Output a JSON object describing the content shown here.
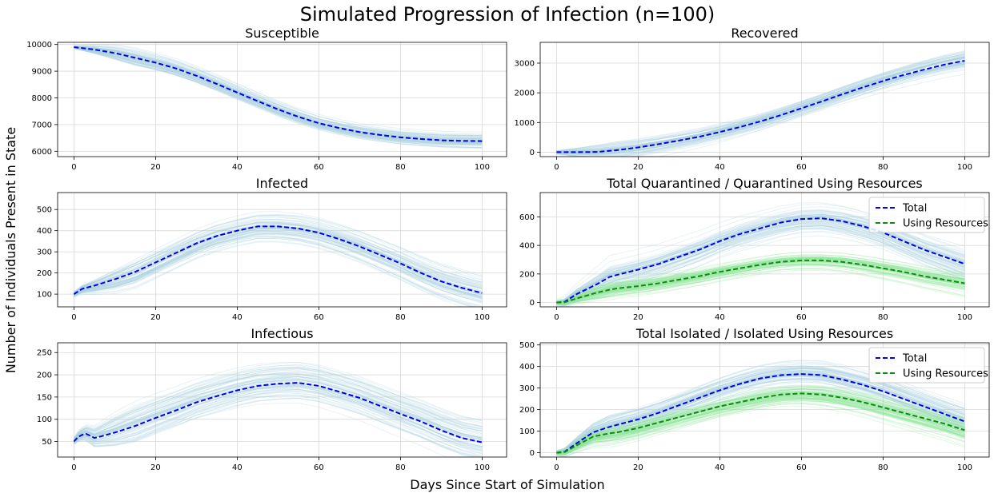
{
  "figure": {
    "suptitle": "Simulated Progression of Infection (n=100)",
    "xlabel": "Days Since Start of Simulation",
    "ylabel": "Number of Individuals Present in State"
  },
  "colors": {
    "mean": "#0000ee",
    "resources_mean": "#118811",
    "sim_blue": "#a9cfe0",
    "sim_green": "#8fe69a",
    "grid": "#d8d8d8"
  },
  "chart_data": [
    {
      "type": "line",
      "title": "Susceptible",
      "xlim": [
        -4,
        106
      ],
      "ylim": [
        5800,
        10080
      ],
      "xticks": [
        0,
        20,
        40,
        60,
        80,
        100
      ],
      "yticks": [
        6000,
        7000,
        8000,
        9000,
        10000
      ],
      "x": [
        0,
        5,
        10,
        15,
        20,
        25,
        30,
        35,
        40,
        45,
        50,
        55,
        60,
        65,
        70,
        75,
        80,
        85,
        90,
        95,
        100
      ],
      "series": [
        {
          "values": [
            9900,
            9810,
            9680,
            9500,
            9320,
            9100,
            8830,
            8520,
            8200,
            7880,
            7570,
            7290,
            7050,
            6870,
            6720,
            6610,
            6520,
            6460,
            6410,
            6390,
            6380
          ],
          "role": "mean",
          "spread": 200
        }
      ],
      "grid": true
    },
    {
      "type": "line",
      "title": "Recovered",
      "xlim": [
        -4,
        106
      ],
      "ylim": [
        -150,
        3700
      ],
      "xticks": [
        0,
        20,
        40,
        60,
        80,
        100
      ],
      "yticks": [
        0,
        1000,
        2000,
        3000
      ],
      "x": [
        0,
        5,
        10,
        15,
        20,
        25,
        30,
        35,
        40,
        45,
        50,
        55,
        60,
        65,
        70,
        75,
        80,
        85,
        90,
        95,
        100
      ],
      "series": [
        {
          "values": [
            0,
            0,
            10,
            70,
            160,
            270,
            390,
            520,
            680,
            850,
            1040,
            1250,
            1480,
            1710,
            1950,
            2180,
            2400,
            2600,
            2780,
            2950,
            3080
          ],
          "role": "mean",
          "spread": 220
        }
      ],
      "grid": true
    },
    {
      "type": "line",
      "title": "Infected",
      "xlim": [
        -4,
        106
      ],
      "ylim": [
        40,
        580
      ],
      "xticks": [
        0,
        20,
        40,
        60,
        80,
        100
      ],
      "yticks": [
        100,
        200,
        300,
        400,
        500
      ],
      "x": [
        0,
        2,
        5,
        10,
        15,
        20,
        25,
        30,
        35,
        40,
        45,
        50,
        55,
        60,
        65,
        70,
        75,
        80,
        85,
        90,
        95,
        100
      ],
      "series": [
        {
          "values": [
            100,
            125,
            140,
            170,
            205,
            250,
            295,
            340,
            375,
            400,
            420,
            420,
            410,
            390,
            360,
            325,
            285,
            245,
            200,
            160,
            130,
            105
          ],
          "role": "mean",
          "spread": 60
        }
      ],
      "grid": true
    },
    {
      "type": "line",
      "title": "Total Quarantined / Quarantined Using Resources",
      "legend": [
        "Total",
        "Using Resources"
      ],
      "legend_loc": "upper right",
      "xlim": [
        -4,
        106
      ],
      "ylim": [
        -30,
        770
      ],
      "xticks": [
        0,
        20,
        40,
        60,
        80,
        100
      ],
      "yticks": [
        0,
        200,
        400,
        600
      ],
      "x": [
        0,
        2,
        5,
        10,
        13,
        15,
        20,
        25,
        30,
        35,
        40,
        45,
        50,
        55,
        60,
        65,
        70,
        75,
        80,
        85,
        90,
        95,
        100
      ],
      "series": [
        {
          "name": "Total",
          "values": [
            0,
            5,
            60,
            130,
            180,
            195,
            230,
            270,
            320,
            370,
            430,
            480,
            520,
            560,
            585,
            590,
            570,
            535,
            490,
            430,
            370,
            320,
            270
          ],
          "role": "mean",
          "spread": 80
        },
        {
          "name": "Using Resources",
          "values": [
            0,
            2,
            30,
            70,
            90,
            100,
            115,
            135,
            160,
            185,
            215,
            240,
            265,
            285,
            295,
            295,
            285,
            265,
            240,
            215,
            185,
            160,
            135
          ],
          "role": "resources_mean",
          "spread": 50
        }
      ],
      "grid": true
    },
    {
      "type": "line",
      "title": "Infectious",
      "xlim": [
        -4,
        106
      ],
      "ylim": [
        15,
        272
      ],
      "xticks": [
        0,
        20,
        40,
        60,
        80,
        100
      ],
      "yticks": [
        50,
        100,
        150,
        200,
        250
      ],
      "x": [
        0,
        1,
        2,
        3,
        4,
        5,
        6,
        8,
        10,
        15,
        20,
        25,
        30,
        35,
        40,
        45,
        50,
        55,
        60,
        65,
        70,
        75,
        80,
        85,
        90,
        95,
        100
      ],
      "series": [
        {
          "values": [
            50,
            60,
            65,
            67,
            63,
            58,
            60,
            65,
            70,
            85,
            103,
            120,
            138,
            152,
            165,
            175,
            180,
            182,
            175,
            162,
            148,
            130,
            112,
            95,
            75,
            58,
            48
          ],
          "role": "mean",
          "spread": 35
        }
      ],
      "grid": true
    },
    {
      "type": "line",
      "title": "Total Isolated / Isolated Using Resources",
      "legend": [
        "Total",
        "Using Resources"
      ],
      "legend_loc": "upper right",
      "xlim": [
        -4,
        106
      ],
      "ylim": [
        -20,
        510
      ],
      "xticks": [
        0,
        20,
        40,
        60,
        80,
        100
      ],
      "yticks": [
        0,
        100,
        200,
        300,
        400,
        500
      ],
      "x": [
        0,
        2,
        5,
        9,
        13,
        15,
        20,
        25,
        30,
        35,
        40,
        45,
        50,
        55,
        60,
        65,
        70,
        75,
        80,
        85,
        90,
        95,
        100
      ],
      "series": [
        {
          "name": "Total",
          "values": [
            0,
            5,
            45,
            95,
            120,
            130,
            155,
            185,
            220,
            255,
            290,
            320,
            345,
            360,
            365,
            360,
            340,
            315,
            285,
            250,
            215,
            180,
            145
          ],
          "role": "mean",
          "spread": 50
        },
        {
          "name": "Using Resources",
          "values": [
            0,
            3,
            35,
            75,
            90,
            95,
            115,
            140,
            165,
            190,
            215,
            235,
            255,
            270,
            275,
            270,
            255,
            235,
            210,
            185,
            160,
            135,
            105
          ],
          "role": "resources_mean",
          "spread": 40
        }
      ],
      "grid": true
    }
  ]
}
